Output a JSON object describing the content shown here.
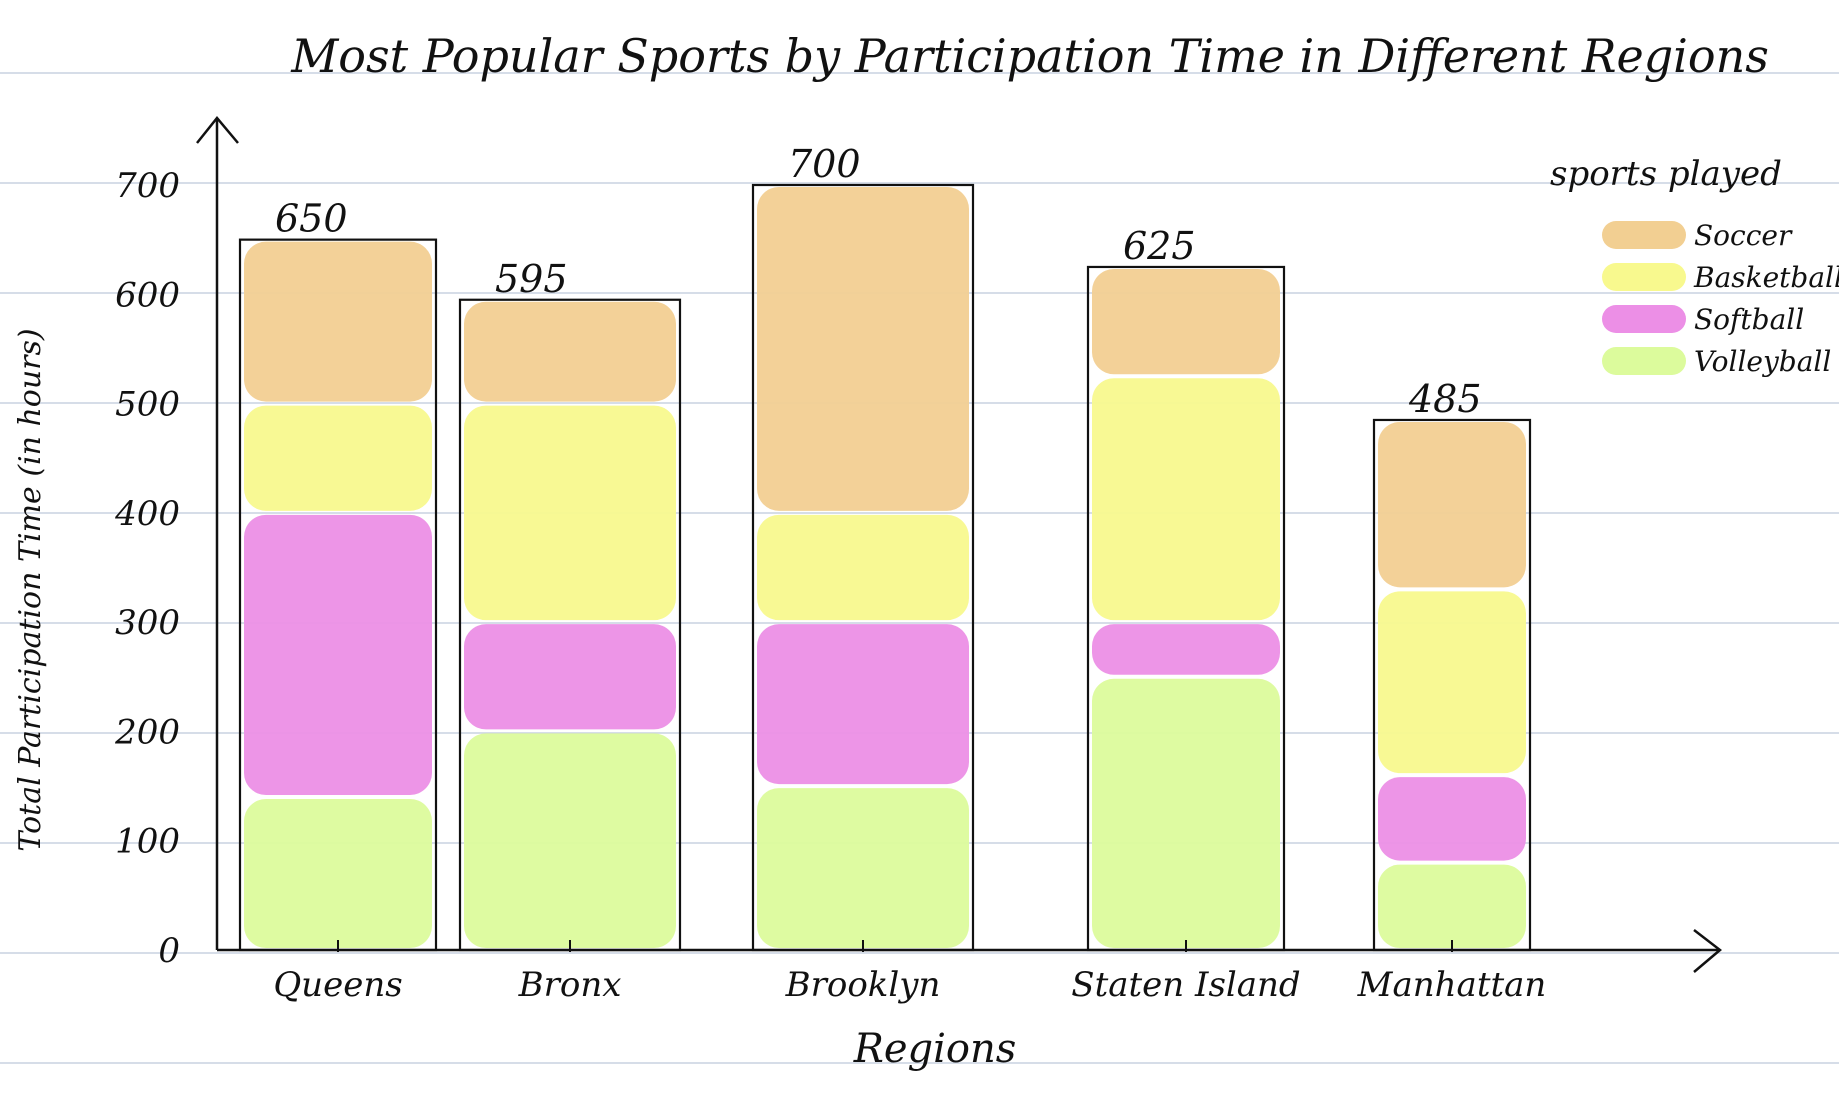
{
  "chart_data": {
    "type": "bar",
    "stacked": true,
    "title": "Most Popular Sports by Participation Time in Different Regions",
    "xlabel": "Regions",
    "ylabel": "Total Participation Time (in hours)",
    "ylim": [
      0,
      700
    ],
    "yticks": [
      0,
      100,
      200,
      300,
      400,
      500,
      600,
      700
    ],
    "categories": [
      "Queens",
      "Bronx",
      "Brooklyn",
      "Staten Island",
      "Manhattan"
    ],
    "total_labels": [
      "650",
      "595",
      "700",
      "625",
      "485"
    ],
    "legend_title": "sports played",
    "legend_position": "top-right",
    "grid": false,
    "series": [
      {
        "name": "Volleyball",
        "color": "#dcfb9c",
        "values": [
          140,
          200,
          150,
          250,
          80
        ]
      },
      {
        "name": "Softball",
        "color": "#ec8fe6",
        "values": [
          260,
          100,
          150,
          50,
          80
        ]
      },
      {
        "name": "Basketball",
        "color": "#f8f98e",
        "values": [
          100,
          200,
          100,
          225,
          170
        ]
      },
      {
        "name": "Soccer",
        "color": "#f2cf92",
        "values": [
          150,
          95,
          300,
          100,
          155
        ]
      }
    ]
  }
}
